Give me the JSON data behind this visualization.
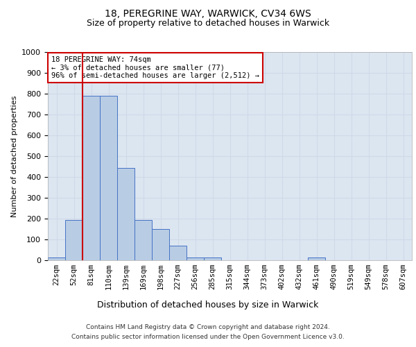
{
  "title1": "18, PEREGRINE WAY, WARWICK, CV34 6WS",
  "title2": "Size of property relative to detached houses in Warwick",
  "xlabel": "Distribution of detached houses by size in Warwick",
  "ylabel": "Number of detached properties",
  "footnote1": "Contains HM Land Registry data © Crown copyright and database right 2024.",
  "footnote2": "Contains public sector information licensed under the Open Government Licence v3.0.",
  "bar_labels": [
    "22sqm",
    "52sqm",
    "81sqm",
    "110sqm",
    "139sqm",
    "169sqm",
    "198sqm",
    "227sqm",
    "256sqm",
    "285sqm",
    "315sqm",
    "344sqm",
    "373sqm",
    "402sqm",
    "432sqm",
    "461sqm",
    "490sqm",
    "519sqm",
    "549sqm",
    "578sqm",
    "607sqm"
  ],
  "bar_values": [
    15,
    195,
    790,
    790,
    445,
    195,
    150,
    70,
    15,
    15,
    0,
    0,
    0,
    0,
    0,
    15,
    0,
    0,
    0,
    0,
    0
  ],
  "bar_color": "#b8cce4",
  "bar_edge_color": "#4472c4",
  "grid_color": "#d0d8e8",
  "bg_color": "#dce6f1",
  "vline_color": "#cc0000",
  "annotation_text": "18 PEREGRINE WAY: 74sqm\n← 3% of detached houses are smaller (77)\n96% of semi-detached houses are larger (2,512) →",
  "annotation_box_color": "#ffffff",
  "annotation_box_edge": "#cc0000",
  "ylim": [
    0,
    1000
  ],
  "yticks": [
    0,
    100,
    200,
    300,
    400,
    500,
    600,
    700,
    800,
    900,
    1000
  ]
}
